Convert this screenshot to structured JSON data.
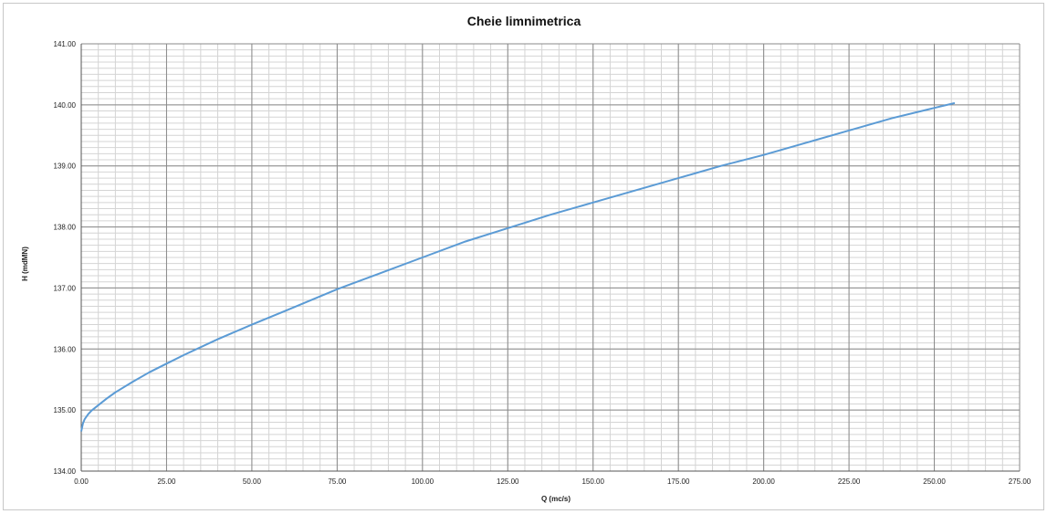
{
  "chart_data": {
    "type": "line",
    "title": "Cheie limnimetrica",
    "xlabel": "Q (mc/s)",
    "ylabel": "H (mdMN)",
    "xlim": [
      0,
      275
    ],
    "ylim": [
      134,
      141
    ],
    "x_ticks": [
      "0.00",
      "25.00",
      "50.00",
      "75.00",
      "100.00",
      "125.00",
      "150.00",
      "175.00",
      "200.00",
      "225.00",
      "250.00",
      "275.00"
    ],
    "y_ticks": [
      "134.00",
      "135.00",
      "136.00",
      "137.00",
      "138.00",
      "139.00",
      "140.00",
      "141.00"
    ],
    "grid": true,
    "legend": "none",
    "line_color": "#5b9bd5",
    "series": [
      {
        "x": [
          0,
          0.5,
          1,
          2,
          3,
          5,
          7.5,
          10,
          15,
          20,
          25,
          30,
          40,
          50,
          60,
          75,
          87.5,
          100,
          112.5,
          125,
          137.5,
          150,
          162.5,
          175,
          187.5,
          200,
          212.5,
          225,
          237.5,
          250,
          256
        ],
        "y": [
          134.65,
          134.78,
          134.85,
          134.93,
          134.99,
          135.08,
          135.19,
          135.29,
          135.46,
          135.62,
          135.76,
          135.9,
          136.16,
          136.4,
          136.63,
          136.98,
          137.24,
          137.5,
          137.76,
          137.98,
          138.2,
          138.4,
          138.6,
          138.8,
          139.0,
          139.18,
          139.38,
          139.58,
          139.78,
          139.95,
          140.03
        ]
      }
    ]
  }
}
